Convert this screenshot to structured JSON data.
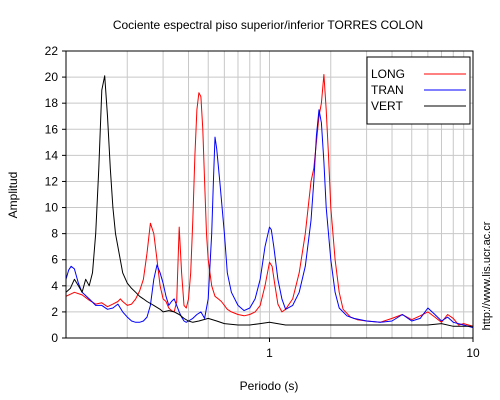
{
  "chart_data": {
    "type": "line",
    "title": "Cociente espectral piso superior/inferior  TORRES COLON",
    "xlabel": "Periodo (s)",
    "ylabel": "Amplitud",
    "x_scale": "log",
    "xlim": [
      0.1,
      10
    ],
    "ylim": [
      0,
      22
    ],
    "x_tick_labels": [
      {
        "value": 1,
        "label": "1"
      },
      {
        "value": 10,
        "label": "10"
      }
    ],
    "y_ticks": [
      0,
      2,
      4,
      6,
      8,
      10,
      12,
      14,
      16,
      18,
      20,
      22
    ],
    "grid": true,
    "legend_position": "top-right",
    "watermark": "http://www.lis.ucr.ac.cr",
    "series": [
      {
        "name": "LONG",
        "color": "#ff0000",
        "x": [
          0.1,
          0.11,
          0.12,
          0.13,
          0.14,
          0.15,
          0.16,
          0.17,
          0.18,
          0.185,
          0.19,
          0.2,
          0.21,
          0.22,
          0.23,
          0.24,
          0.25,
          0.26,
          0.27,
          0.28,
          0.29,
          0.3,
          0.31,
          0.32,
          0.33,
          0.34,
          0.35,
          0.36,
          0.37,
          0.38,
          0.39,
          0.4,
          0.41,
          0.42,
          0.43,
          0.44,
          0.45,
          0.46,
          0.47,
          0.48,
          0.49,
          0.5,
          0.52,
          0.54,
          0.56,
          0.58,
          0.6,
          0.62,
          0.65,
          0.7,
          0.75,
          0.8,
          0.85,
          0.9,
          0.95,
          1.0,
          1.03,
          1.06,
          1.1,
          1.15,
          1.2,
          1.3,
          1.4,
          1.5,
          1.6,
          1.65,
          1.7,
          1.75,
          1.8,
          1.85,
          1.9,
          1.95,
          2.0,
          2.1,
          2.2,
          2.3,
          2.5,
          2.7,
          3.0,
          3.5,
          4.0,
          4.5,
          5.0,
          5.5,
          6.0,
          6.5,
          7.0,
          7.5,
          8.0,
          8.5,
          9.0,
          10.0
        ],
        "y": [
          3.2,
          3.5,
          3.3,
          2.9,
          2.6,
          2.7,
          2.4,
          2.6,
          2.8,
          3.0,
          2.8,
          2.5,
          2.6,
          3.0,
          3.6,
          4.5,
          6.5,
          8.8,
          8.0,
          6.0,
          4.0,
          3.0,
          2.8,
          2.3,
          2.1,
          2.0,
          2.8,
          8.5,
          5.0,
          2.5,
          2.3,
          3.0,
          5.0,
          9.0,
          14.0,
          17.5,
          18.8,
          18.5,
          16.0,
          12.0,
          8.0,
          6.0,
          4.0,
          3.2,
          3.0,
          2.8,
          2.5,
          2.2,
          2.0,
          1.8,
          1.7,
          1.8,
          2.0,
          2.5,
          4.0,
          5.8,
          5.5,
          4.2,
          2.6,
          2.0,
          2.2,
          3.0,
          5.0,
          8.0,
          12.0,
          13.0,
          15.0,
          17.0,
          18.0,
          20.2,
          17.5,
          14.0,
          10.0,
          6.0,
          3.5,
          2.2,
          1.6,
          1.4,
          1.3,
          1.2,
          1.5,
          1.8,
          1.4,
          1.7,
          2.0,
          1.6,
          1.2,
          1.8,
          1.5,
          1.0,
          1.1,
          0.9
        ]
      },
      {
        "name": "TRAN",
        "color": "#0000ff",
        "x": [
          0.1,
          0.103,
          0.106,
          0.11,
          0.115,
          0.12,
          0.13,
          0.14,
          0.15,
          0.16,
          0.17,
          0.18,
          0.19,
          0.2,
          0.21,
          0.22,
          0.23,
          0.24,
          0.25,
          0.26,
          0.27,
          0.28,
          0.29,
          0.3,
          0.31,
          0.32,
          0.33,
          0.34,
          0.35,
          0.36,
          0.37,
          0.38,
          0.39,
          0.4,
          0.42,
          0.44,
          0.46,
          0.48,
          0.5,
          0.52,
          0.53,
          0.54,
          0.55,
          0.57,
          0.6,
          0.62,
          0.65,
          0.7,
          0.75,
          0.8,
          0.85,
          0.9,
          0.95,
          1.0,
          1.02,
          1.05,
          1.1,
          1.15,
          1.2,
          1.3,
          1.4,
          1.5,
          1.6,
          1.65,
          1.7,
          1.75,
          1.8,
          1.85,
          1.9,
          2.0,
          2.1,
          2.2,
          2.4,
          2.6,
          3.0,
          3.5,
          4.0,
          4.5,
          5.0,
          5.5,
          6.0,
          6.5,
          7.0,
          7.5,
          8.0,
          9.0,
          10.0
        ],
        "y": [
          4.5,
          5.2,
          5.5,
          5.3,
          4.2,
          3.5,
          3.0,
          2.5,
          2.5,
          2.2,
          2.3,
          2.6,
          2.0,
          1.6,
          1.3,
          1.2,
          1.2,
          1.3,
          1.6,
          2.5,
          4.5,
          5.6,
          5.0,
          4.2,
          3.2,
          2.5,
          2.8,
          3.0,
          2.5,
          2.0,
          1.6,
          1.3,
          1.2,
          1.3,
          1.5,
          1.8,
          2.0,
          1.5,
          3.0,
          8.0,
          12.0,
          15.4,
          14.5,
          12.0,
          8.0,
          5.0,
          3.5,
          2.5,
          2.1,
          2.3,
          3.0,
          4.5,
          7.0,
          8.5,
          8.3,
          7.0,
          4.5,
          3.0,
          2.2,
          2.5,
          3.5,
          5.5,
          9.0,
          12.0,
          15.5,
          17.5,
          16.5,
          13.5,
          10.0,
          6.0,
          3.5,
          2.3,
          1.7,
          1.5,
          1.3,
          1.2,
          1.3,
          1.8,
          1.3,
          1.5,
          2.3,
          1.8,
          1.3,
          1.6,
          1.2,
          1.0,
          0.8
        ]
      },
      {
        "name": "VERT",
        "color": "#000000",
        "x": [
          0.1,
          0.105,
          0.11,
          0.115,
          0.12,
          0.125,
          0.13,
          0.135,
          0.14,
          0.145,
          0.15,
          0.155,
          0.16,
          0.165,
          0.17,
          0.175,
          0.18,
          0.19,
          0.2,
          0.21,
          0.22,
          0.23,
          0.24,
          0.25,
          0.27,
          0.29,
          0.3,
          0.32,
          0.34,
          0.36,
          0.38,
          0.4,
          0.42,
          0.45,
          0.5,
          0.55,
          0.6,
          0.7,
          0.8,
          0.9,
          1.0,
          1.2,
          1.5,
          2.0,
          2.5,
          3.0,
          4.0,
          5.0,
          6.0,
          7.0,
          8.0,
          10.0
        ],
        "y": [
          3.5,
          3.8,
          4.5,
          4.0,
          3.5,
          4.5,
          4.0,
          5.0,
          8.0,
          13.0,
          19.0,
          20.1,
          17.0,
          13.0,
          10.0,
          8.0,
          7.0,
          5.0,
          4.2,
          3.8,
          3.5,
          3.2,
          3.0,
          2.8,
          2.5,
          2.2,
          2.0,
          2.1,
          2.0,
          1.8,
          1.5,
          1.3,
          1.2,
          1.3,
          1.5,
          1.3,
          1.1,
          1.0,
          1.0,
          1.1,
          1.2,
          1.0,
          1.0,
          1.0,
          1.0,
          1.0,
          1.0,
          1.0,
          1.0,
          1.1,
          0.9,
          0.9
        ]
      }
    ]
  }
}
